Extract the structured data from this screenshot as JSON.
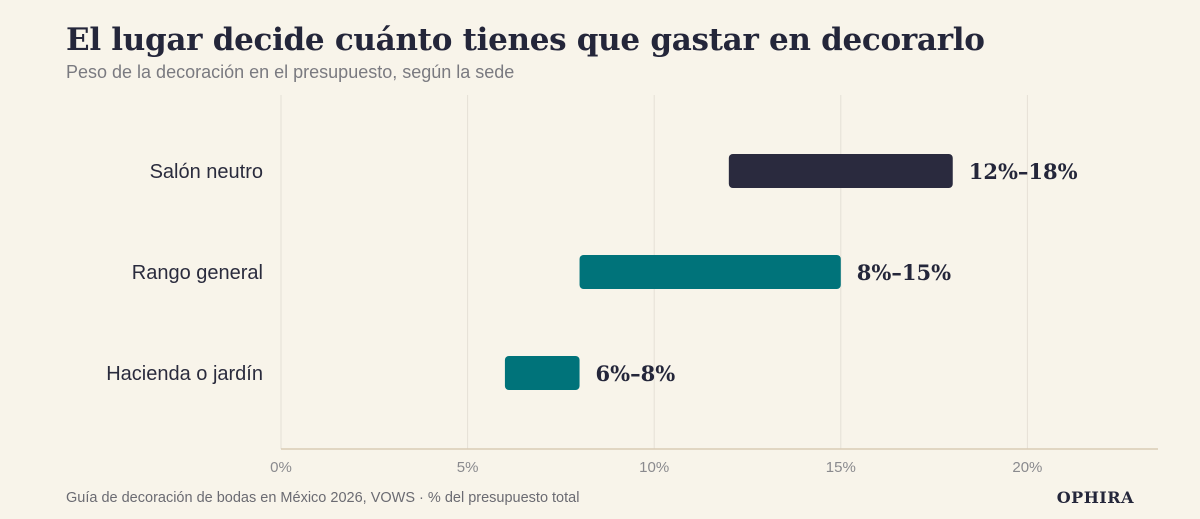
{
  "title": "El lugar decide cuánto tienes que gastar en decorarlo",
  "subtitle": "Peso de la decoración en el presupuesto, según la sede",
  "source": "Guía de decoración de bodas en México 2026, VOWS · % del presupuesto total",
  "brand": "OPHIRA",
  "colors": {
    "background": "#f8f4ea",
    "highlight": "#2a2a3e",
    "standard": "#00737a",
    "grid": "#e5e0d6",
    "axis": "#d9cbb5"
  },
  "chart_data": {
    "type": "bar",
    "orientation": "horizontal-range",
    "categories": [
      "Salón neutro",
      "Rango general",
      "Hacienda o jardín"
    ],
    "series": [
      {
        "values": [
          [
            12,
            18
          ],
          [
            8,
            15
          ],
          [
            6,
            8
          ]
        ]
      }
    ],
    "data_labels": [
      "12%–18%",
      "8%–15%",
      "6%–8%"
    ],
    "bar_colors": [
      "#2a2a3e",
      "#00737a",
      "#00737a"
    ],
    "x_ticks": [
      0,
      5,
      10,
      15,
      20
    ],
    "x_tick_labels": [
      "0%",
      "5%",
      "10%",
      "15%",
      "20%"
    ],
    "xlim": [
      0,
      23.5
    ],
    "grid": true,
    "xlabel": "",
    "ylabel": ""
  }
}
